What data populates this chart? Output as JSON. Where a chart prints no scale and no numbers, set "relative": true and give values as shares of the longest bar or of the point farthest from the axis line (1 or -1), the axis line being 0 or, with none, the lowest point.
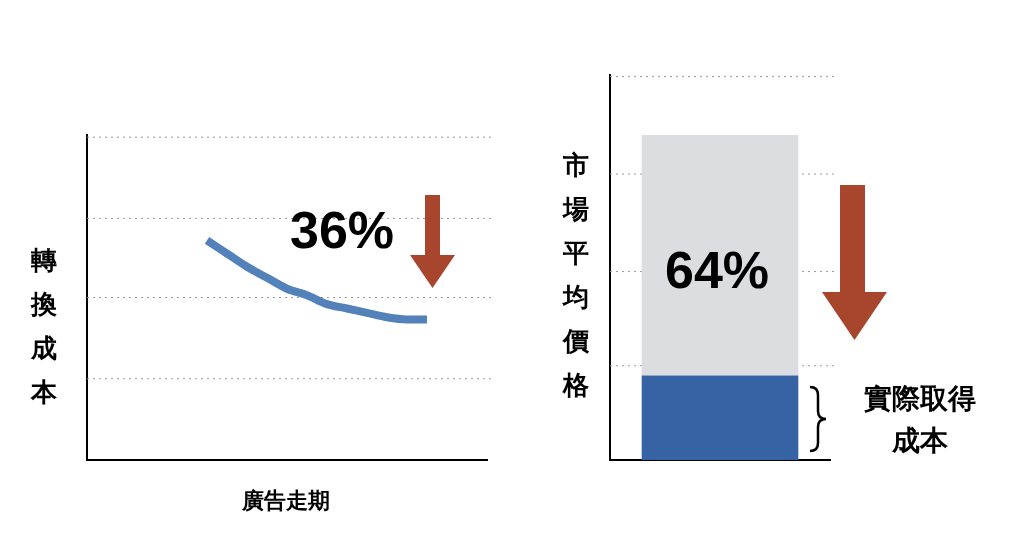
{
  "chart_data": [
    {
      "type": "line",
      "relative": true,
      "ylabel": "轉換成本",
      "xlabel": "廣告走期",
      "tick_labels": false,
      "categories": [
        null,
        null,
        null,
        null,
        null,
        null,
        null,
        null,
        null,
        null,
        null,
        null,
        null,
        null,
        null,
        null,
        null,
        null,
        null,
        null,
        null
      ],
      "series": [
        {
          "color": "#5381ba",
          "values": [
            null,
            null,
            null,
            null,
            null,
            null,
            1,
            0.94,
            0.88,
            0.83,
            0.78,
            0.75,
            0.71,
            0.69,
            0.67,
            0.65,
            0.64,
            0.64,
            null,
            null,
            null
          ]
        }
      ],
      "ref_lines": [
        {
          "axis": "y",
          "value": 1.47,
          "color": "#999999",
          "line_style": "dotted"
        },
        {
          "axis": "y",
          "value": 1.1,
          "color": "#999999",
          "line_style": "dotted"
        },
        {
          "axis": "y",
          "value": 0.74,
          "color": "#999999",
          "line_style": "dotted"
        },
        {
          "axis": "y",
          "value": 0.37,
          "color": "#999999",
          "line_style": "dotted"
        }
      ],
      "annotations": [
        "36%"
      ]
    },
    {
      "type": "bar",
      "relative": true,
      "stacked": true,
      "ylabel": "市場平均價格",
      "tick_labels": false,
      "categories": [
        null
      ],
      "series": [
        {
          "color": "#3563a3",
          "values": [
            0.26
          ]
        },
        {
          "color": "#dcdde0",
          "values": [
            0.74
          ]
        }
      ],
      "ref_lines": [
        {
          "axis": "y",
          "value": 1.18,
          "color": "#999999",
          "line_style": "dotted"
        },
        {
          "axis": "y",
          "value": 0.88,
          "color": "#999999",
          "line_style": "dotted"
        },
        {
          "axis": "y",
          "value": 0.58,
          "color": "#999999",
          "line_style": "dotted"
        },
        {
          "axis": "y",
          "value": 0.29,
          "color": "#999999",
          "line_style": "dotted"
        }
      ],
      "annotations": [
        "64%",
        "實際取得成本"
      ]
    }
  ]
}
